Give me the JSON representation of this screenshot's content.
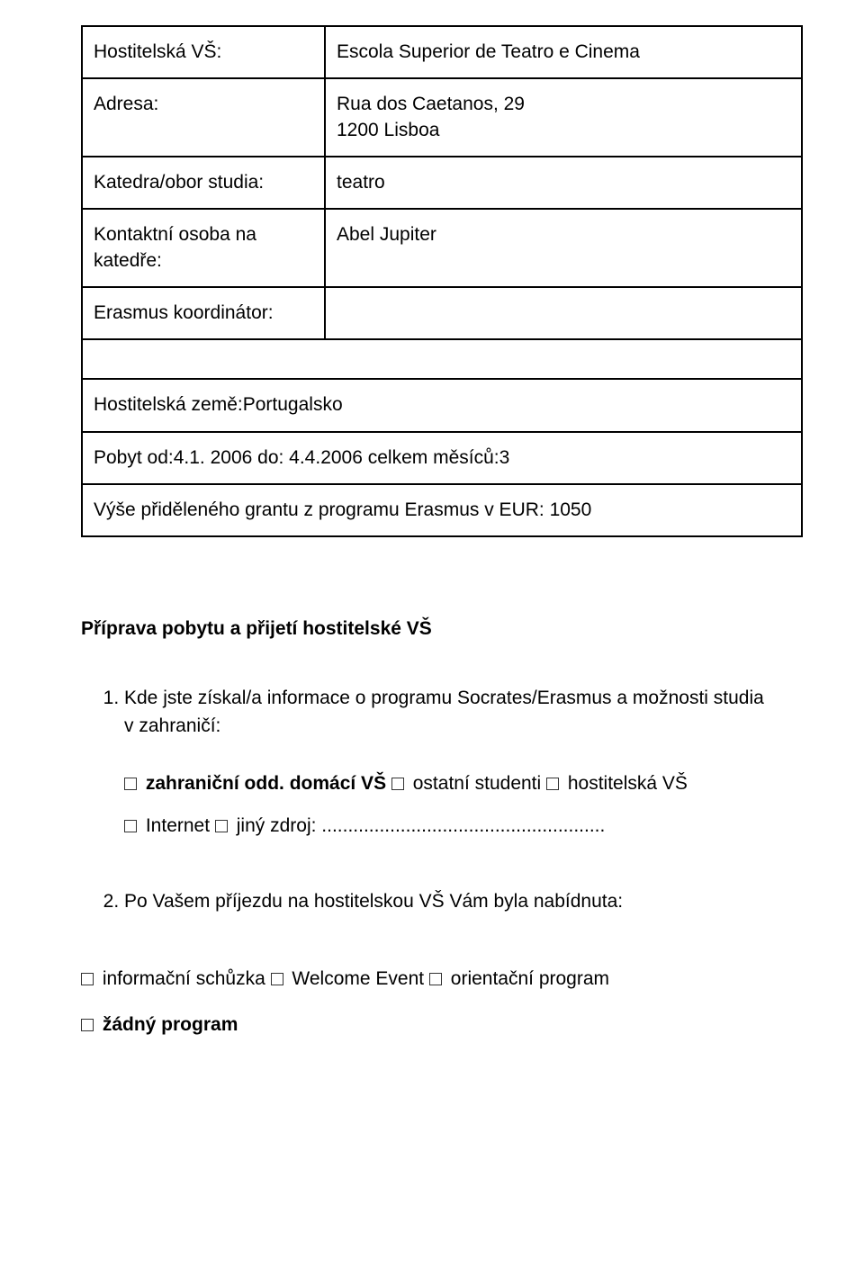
{
  "rows": {
    "r1": {
      "label": "Hostitelská VŠ:",
      "value": "Escola Superior de Teatro e Cinema"
    },
    "r2": {
      "label": "Adresa:",
      "value_l1": "Rua dos Caetanos, 29",
      "value_l2": "1200 Lisboa"
    },
    "r3": {
      "label": "Katedra/obor studia:",
      "value": "teatro"
    },
    "r4": {
      "label_l1": "Kontaktní osoba na",
      "label_l2": "katedře:",
      "value": "Abel Jupiter"
    },
    "r5": {
      "label": "Erasmus koordinátor:",
      "value": ""
    },
    "full1": "Hostitelská země:Portugalsko",
    "full2": "Pobyt od:4.1. 2006 do: 4.4.2006 celkem měsíců:3",
    "full3": "Výše přiděleného grantu z programu Erasmus v EUR: 1050"
  },
  "section_title": "Příprava pobytu a přijetí hostitelské VŠ",
  "q1": {
    "text_l1": "Kde jste získal/a informace o programu Socrates/Erasmus a možnosti studia",
    "text_l2": "v zahraničí:",
    "opt_zahranicni": "zahraniční odd.",
    "opt_domaci_prefix": " domácí VŠ ",
    "opt_ostatni": " ostatní studenti ",
    "opt_hostitelska": " hostitelská VŠ",
    "opt_internet": " Internet ",
    "opt_jiny": " jiný zdroj: ",
    "dots": "......................................................"
  },
  "q2": {
    "text": "Po Vašem příjezdu na hostitelskou VŠ Vám byla nabídnuta:",
    "opt_info": " informační schůzka ",
    "opt_welcome": " Welcome Event ",
    "opt_orient": " orientační program",
    "opt_zadny": " žádný program"
  }
}
